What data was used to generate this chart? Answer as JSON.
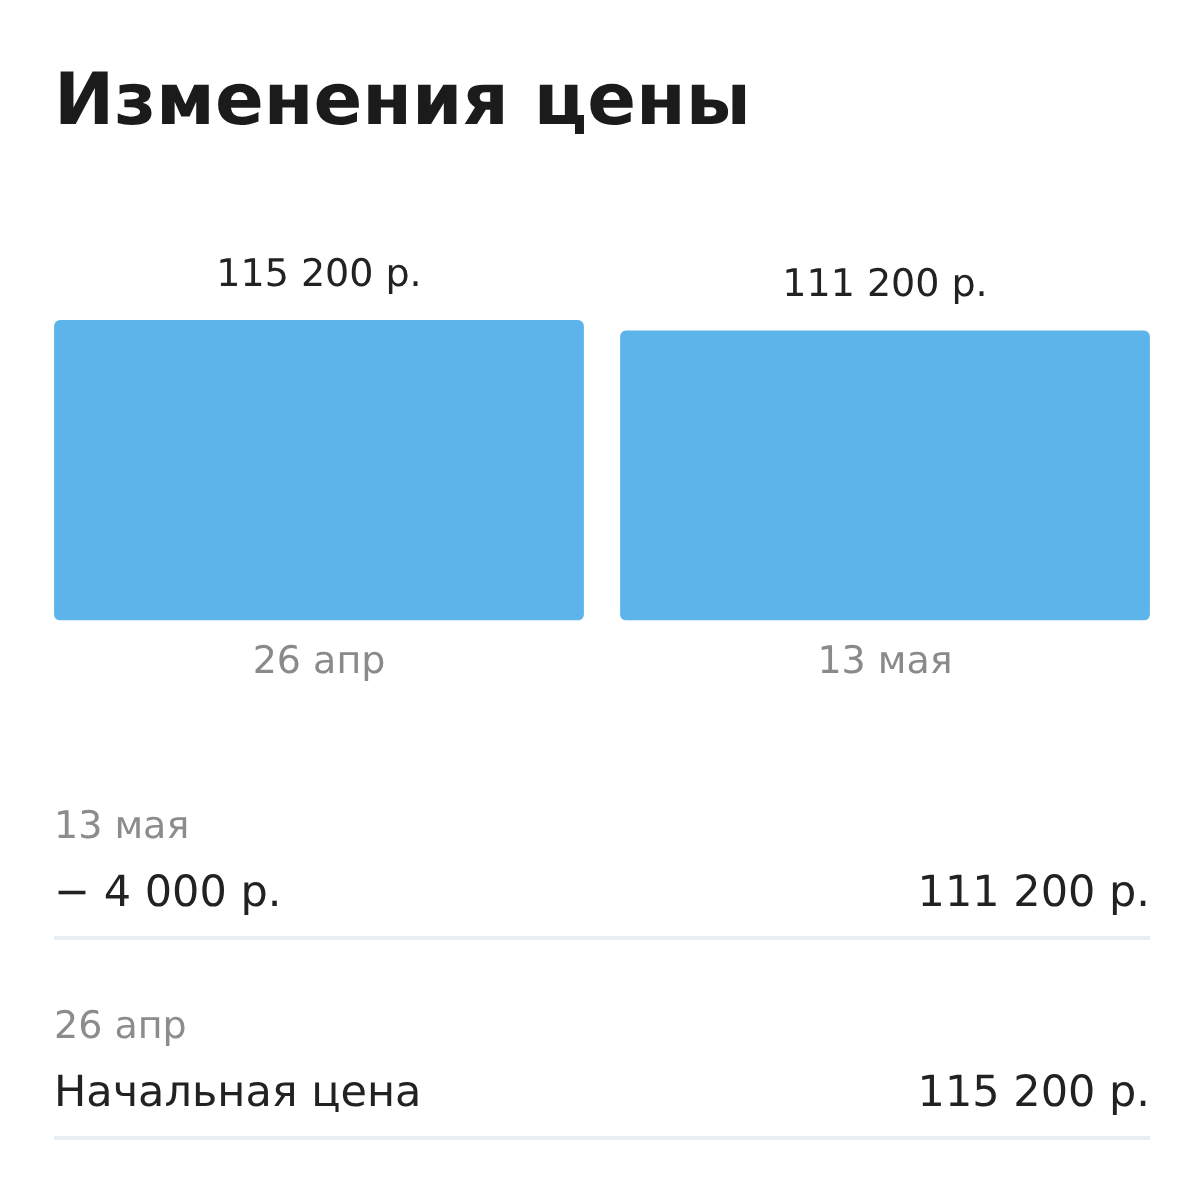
{
  "chart_data": {
    "type": "bar",
    "title": "Изменения цены",
    "categories": [
      "26 апр",
      "13 мая"
    ],
    "values": [
      115200,
      111200
    ],
    "value_labels": [
      "115 200 р.",
      "111 200 р."
    ],
    "color": "#5db4ea",
    "tick_labels": "x",
    "annotations": [
      "13 мая",
      "− 4 000 р.",
      "111 200 р.",
      "26 апр",
      "Начальная цена",
      "115 200 р."
    ]
  }
}
